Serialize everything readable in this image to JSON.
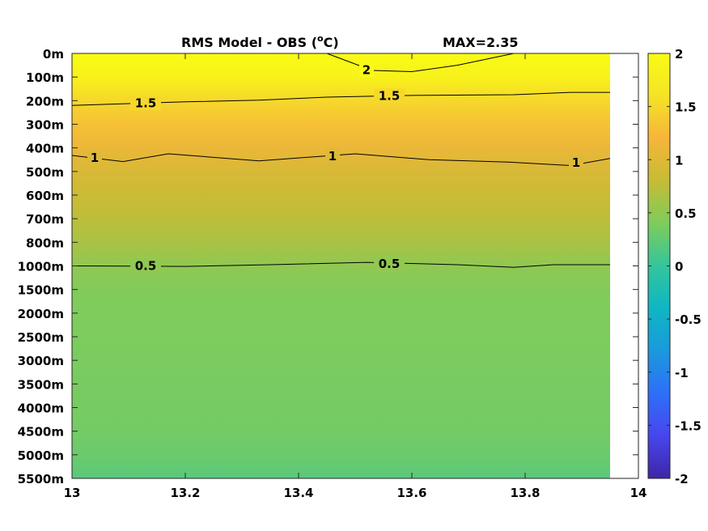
{
  "chart_data": {
    "type": "heatmap",
    "title": "RMS Model - OBS (",
    "title_degree": "o",
    "title_unit": "C)",
    "max_label": "MAX=2.35",
    "x_ticks": [
      "13",
      "13.2",
      "13.4",
      "13.6",
      "13.8",
      "14"
    ],
    "xlim": [
      13,
      14
    ],
    "data_x_extent": [
      13,
      13.95
    ],
    "y_ticks": [
      "0m",
      "100m",
      "200m",
      "300m",
      "400m",
      "500m",
      "600m",
      "700m",
      "800m",
      "1000m",
      "1500m",
      "2000m",
      "2500m",
      "3000m",
      "3500m",
      "4000m",
      "4500m",
      "5000m",
      "5500m"
    ],
    "colorbar": {
      "range": [
        -2,
        2
      ],
      "ticks": [
        "2",
        "1.5",
        "1",
        "0.5",
        "0",
        "-0.5",
        "-1",
        "-1.5",
        "-2"
      ],
      "colors": [
        "#3e26a8",
        "#4746ec",
        "#2e6ff8",
        "#1b99dc",
        "#0eb6c4",
        "#34c59b",
        "#7ecc5c",
        "#c5bc35",
        "#f7b53a",
        "#f5e326",
        "#f9fb15"
      ]
    },
    "depth_profile": [
      {
        "depth": "0m",
        "value": 2.05
      },
      {
        "depth": "100m",
        "value": 1.85
      },
      {
        "depth": "200m",
        "value": 1.5
      },
      {
        "depth": "300m",
        "value": 1.3
      },
      {
        "depth": "400m",
        "value": 1.1
      },
      {
        "depth": "500m",
        "value": 0.95
      },
      {
        "depth": "600m",
        "value": 0.85
      },
      {
        "depth": "700m",
        "value": 0.75
      },
      {
        "depth": "800m",
        "value": 0.65
      },
      {
        "depth": "1000m",
        "value": 0.5
      },
      {
        "depth": "1500m",
        "value": 0.42
      },
      {
        "depth": "2000m",
        "value": 0.4
      },
      {
        "depth": "2500m",
        "value": 0.39
      },
      {
        "depth": "3000m",
        "value": 0.38
      },
      {
        "depth": "3500m",
        "value": 0.37
      },
      {
        "depth": "4000m",
        "value": 0.36
      },
      {
        "depth": "4500m",
        "value": 0.34
      },
      {
        "depth": "5000m",
        "value": 0.3
      },
      {
        "depth": "5500m",
        "value": 0.2
      }
    ],
    "contours": [
      {
        "level": "2",
        "points": [
          [
            13.45,
            0
          ],
          [
            13.53,
            0.72
          ],
          [
            13.6,
            0.77
          ],
          [
            13.68,
            0.5
          ],
          [
            13.78,
            0
          ]
        ],
        "labels": [
          [
            13.52,
            0.7
          ]
        ]
      },
      {
        "level": "1.5",
        "points": [
          [
            13,
            2.2
          ],
          [
            13.2,
            2.05
          ],
          [
            13.33,
            1.98
          ],
          [
            13.45,
            1.85
          ],
          [
            13.6,
            1.78
          ],
          [
            13.78,
            1.75
          ],
          [
            13.88,
            1.65
          ],
          [
            13.95,
            1.65
          ]
        ],
        "labels": [
          [
            13.13,
            2.1
          ],
          [
            13.56,
            1.8
          ]
        ]
      },
      {
        "level": "1",
        "points": [
          [
            13,
            4.32
          ],
          [
            13.09,
            4.58
          ],
          [
            13.17,
            4.25
          ],
          [
            13.33,
            4.55
          ],
          [
            13.5,
            4.25
          ],
          [
            13.63,
            4.5
          ],
          [
            13.77,
            4.6
          ],
          [
            13.88,
            4.75
          ],
          [
            13.95,
            4.45
          ]
        ],
        "labels": [
          [
            13.04,
            4.42
          ],
          [
            13.46,
            4.35
          ],
          [
            13.89,
            4.63
          ]
        ]
      },
      {
        "level": "0.5",
        "points": [
          [
            13,
            9
          ],
          [
            13.2,
            9.02
          ],
          [
            13.35,
            8.95
          ],
          [
            13.52,
            8.85
          ],
          [
            13.68,
            8.95
          ],
          [
            13.78,
            9.06
          ],
          [
            13.85,
            8.95
          ],
          [
            13.95,
            8.95
          ]
        ],
        "labels": [
          [
            13.13,
            9
          ],
          [
            13.56,
            8.92
          ]
        ]
      }
    ]
  }
}
